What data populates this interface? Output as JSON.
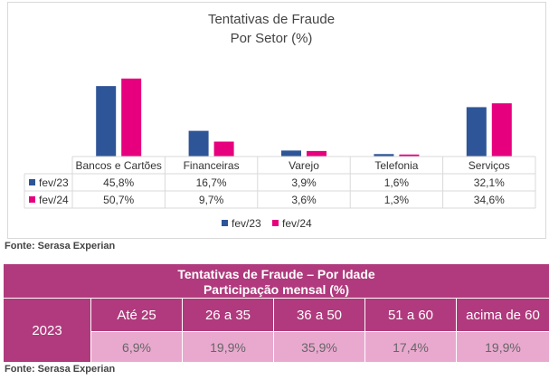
{
  "chart_data": {
    "type": "bar",
    "title": "Tentativas de Fraude",
    "subtitle": "Por Setor (%)",
    "categories": [
      "Bancos e Cartões",
      "Financeiras",
      "Varejo",
      "Telefonia",
      "Serviços"
    ],
    "series": [
      {
        "name": "fev/23",
        "color": "#2e5597",
        "values": [
          45.8,
          16.7,
          3.9,
          1.6,
          32.1
        ],
        "labels": [
          "45,8%",
          "16,7%",
          "3,9%",
          "1,6%",
          "32,1%"
        ]
      },
      {
        "name": "fev/24",
        "color": "#e6007e",
        "values": [
          50.7,
          9.7,
          3.6,
          1.3,
          34.6
        ],
        "labels": [
          "50,7%",
          "9,7%",
          "3,6%",
          "1,3%",
          "34,6%"
        ]
      }
    ],
    "ylim": [
      0,
      60
    ],
    "legend": "bottom"
  },
  "chart_source": "Fonte: Serasa Experian",
  "age_table": {
    "title": "Tentativas de Fraude – Por Idade",
    "subtitle": "Participação mensal (%)",
    "year": "2023",
    "headers": [
      "Até 25",
      "26 a 35",
      "36 a 50",
      "51 a 60",
      "acima de 60"
    ],
    "values": [
      "6,9%",
      "19,9%",
      "35,9%",
      "17,4%",
      "19,9%"
    ]
  },
  "table_source": "Fonte: Serasa Experian"
}
